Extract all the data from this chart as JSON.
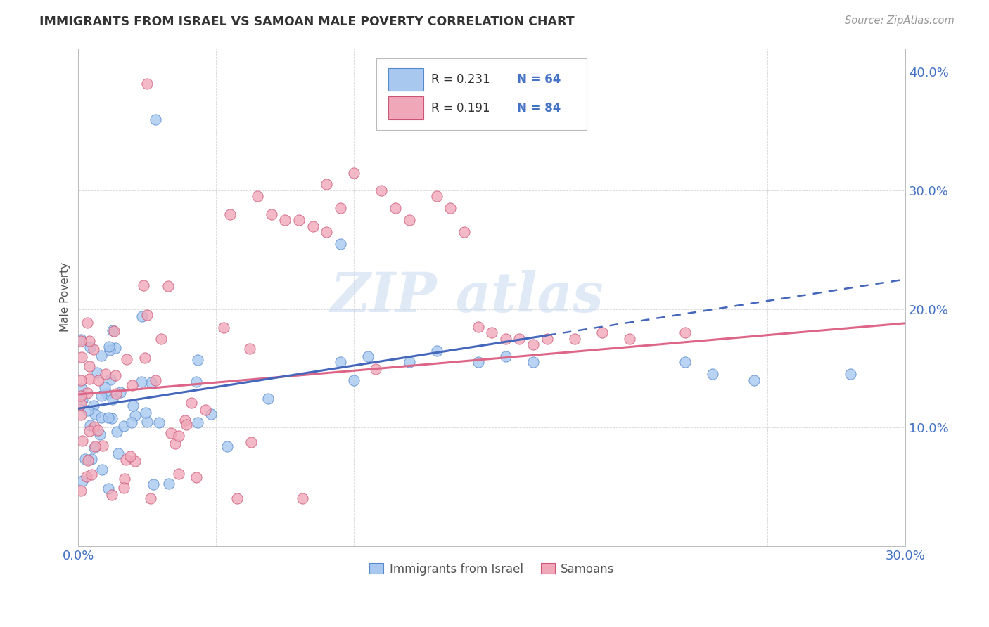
{
  "title": "IMMIGRANTS FROM ISRAEL VS SAMOAN MALE POVERTY CORRELATION CHART",
  "source_text": "Source: ZipAtlas.com",
  "ylabel": "Male Poverty",
  "xlim": [
    0.0,
    0.3
  ],
  "ylim": [
    0.0,
    0.42
  ],
  "xtick_vals": [
    0.0,
    0.05,
    0.1,
    0.15,
    0.2,
    0.25,
    0.3
  ],
  "xtick_labels": [
    "0.0%",
    "",
    "",
    "",
    "",
    "",
    "30.0%"
  ],
  "ytick_vals": [
    0.0,
    0.1,
    0.2,
    0.3,
    0.4
  ],
  "ytick_labels": [
    "",
    "10.0%",
    "20.0%",
    "30.0%",
    "40.0%"
  ],
  "color_israel_fill": "#A8C8F0",
  "color_israel_edge": "#5588CC",
  "color_samoan_fill": "#F0A8B8",
  "color_samoan_edge": "#CC5577",
  "color_israel_line": "#4466BB",
  "color_samoan_line": "#DD6688",
  "color_grid": "#CCCCCC",
  "color_tick": "#4472C4",
  "background_color": "#FFFFFF",
  "watermark_color": "#C8D8F0",
  "title_color": "#333333",
  "source_color": "#999999",
  "legend_r1": "R = 0.231",
  "legend_n1": "N = 64",
  "legend_r2": "R = 0.191",
  "legend_n2": "N = 84",
  "israel_line_start_x": 0.0,
  "israel_line_start_y": 0.116,
  "israel_line_solid_end_x": 0.17,
  "israel_line_end_x": 0.3,
  "israel_line_end_y": 0.225,
  "samoan_line_start_x": 0.0,
  "samoan_line_start_y": 0.128,
  "samoan_line_end_x": 0.3,
  "samoan_line_end_y": 0.188
}
